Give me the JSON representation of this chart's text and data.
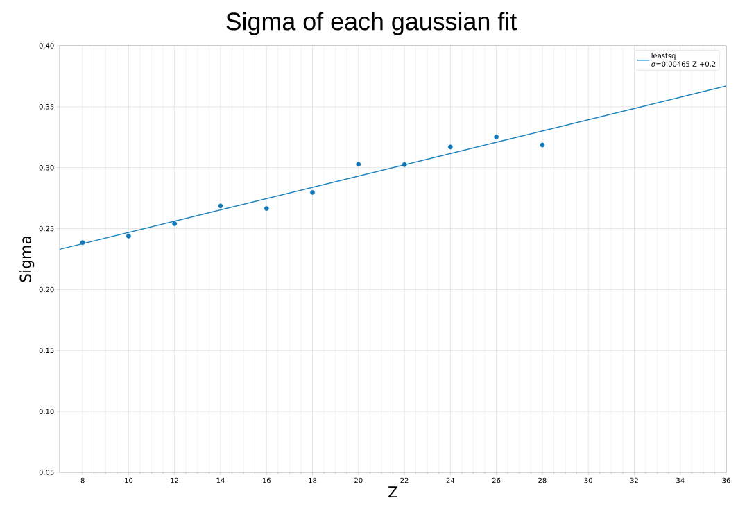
{
  "chart_data": {
    "type": "scatter",
    "title": "Sigma of each gaussian fit",
    "xlabel": "Z",
    "ylabel": "Sigma",
    "xlim": [
      7,
      36
    ],
    "xticks": [
      8,
      10,
      12,
      14,
      16,
      18,
      20,
      22,
      24,
      26,
      28,
      30,
      32,
      34,
      36
    ],
    "ylim": [
      0.05,
      0.4
    ],
    "yticks": [
      {
        "value": 0.05,
        "label": "0.05"
      },
      {
        "value": 0.1,
        "label": "0.10"
      },
      {
        "value": 0.15,
        "label": "0.15"
      },
      {
        "value": 0.2,
        "label": "0.20"
      },
      {
        "value": 0.25,
        "label": "0.25"
      },
      {
        "value": 0.3,
        "label": "0.30"
      },
      {
        "value": 0.35,
        "label": "0.35"
      },
      {
        "value": 0.4,
        "label": "0.40"
      }
    ],
    "grid": true,
    "legend": "top right",
    "annotations": [
      "*σ*=0.00465 Z +0.2"
    ],
    "series": [
      {
        "marker": "circle",
        "color": "#1077b8",
        "x": [
          8,
          10,
          12,
          14,
          16,
          18,
          20,
          22,
          24,
          26,
          28
        ],
        "values": [
          0.2385,
          0.2439,
          0.254,
          0.2686,
          0.2665,
          0.2797,
          0.3028,
          0.3025,
          0.317,
          0.3252,
          0.3186
        ]
      },
      {
        "type": "line",
        "name": "leastsq",
        "marker": "none",
        "color": "#1a80bb",
        "line_style": "solid",
        "x": [
          7,
          36
        ],
        "values": [
          0.233,
          0.367
        ]
      }
    ]
  }
}
